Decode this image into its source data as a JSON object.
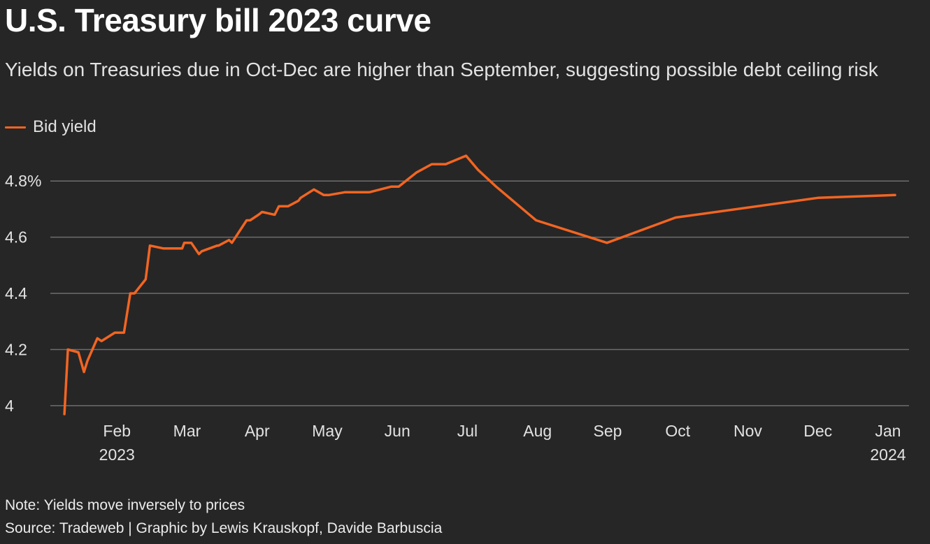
{
  "header": {
    "title": "U.S. Treasury bill 2023 curve",
    "subtitle": "Yields on Treasuries due in Oct-Dec are higher than September, suggesting possible debt ceiling risk"
  },
  "legend": {
    "label": "Bid yield"
  },
  "footer": {
    "note": "Note: Yields move inversely to prices",
    "source": "Source: Tradeweb | Graphic by Lewis Krauskopf, Davide Barbuscia"
  },
  "colors": {
    "background": "#262626",
    "line": "#f26522",
    "grid": "#6e6e6e"
  },
  "chart_data": {
    "type": "line",
    "title": "U.S. Treasury bill 2023 curve",
    "xlabel": "",
    "ylabel": "",
    "ylim": [
      3.97,
      4.9
    ],
    "xlim": [
      0,
      12.2
    ],
    "grid": true,
    "legend_position": "top-left",
    "y_ticks": [
      {
        "value": 4.0,
        "label": "4"
      },
      {
        "value": 4.2,
        "label": "4.2"
      },
      {
        "value": 4.4,
        "label": "4.4"
      },
      {
        "value": 4.6,
        "label": "4.6"
      },
      {
        "value": 4.8,
        "label": "4.8%"
      }
    ],
    "x_ticks": [
      {
        "value": 1,
        "label": "Feb",
        "sublabel": "2023"
      },
      {
        "value": 2,
        "label": "Mar"
      },
      {
        "value": 3,
        "label": "Apr"
      },
      {
        "value": 4,
        "label": "May"
      },
      {
        "value": 5,
        "label": "Jun"
      },
      {
        "value": 6,
        "label": "Jul"
      },
      {
        "value": 7,
        "label": "Aug"
      },
      {
        "value": 8,
        "label": "Sep"
      },
      {
        "value": 9,
        "label": "Oct"
      },
      {
        "value": 10,
        "label": "Nov"
      },
      {
        "value": 11,
        "label": "Dec"
      },
      {
        "value": 12,
        "label": "Jan",
        "sublabel": "2024"
      }
    ],
    "series": [
      {
        "name": "Bid yield",
        "x": [
          0.25,
          0.3,
          0.45,
          0.53,
          0.58,
          0.72,
          0.78,
          0.97,
          1.1,
          1.19,
          1.25,
          1.41,
          1.47,
          1.66,
          1.72,
          1.93,
          1.96,
          2.06,
          2.17,
          2.21,
          2.43,
          2.45,
          2.6,
          2.64,
          2.85,
          2.9,
          3.02,
          3.07,
          3.25,
          3.31,
          3.44,
          3.59,
          3.62,
          3.81,
          3.95,
          4.02,
          4.25,
          4.29,
          4.6,
          4.91,
          5.02,
          5.27,
          5.49,
          5.69,
          5.98,
          6.15,
          6.41,
          6.98,
          7.99,
          8.97,
          11.0,
          12.1
        ],
        "y": [
          3.97,
          4.2,
          4.19,
          4.12,
          4.16,
          4.24,
          4.23,
          4.26,
          4.26,
          4.4,
          4.4,
          4.45,
          4.57,
          4.56,
          4.56,
          4.56,
          4.58,
          4.58,
          4.54,
          4.55,
          4.57,
          4.57,
          4.59,
          4.58,
          4.66,
          4.66,
          4.68,
          4.69,
          4.68,
          4.71,
          4.71,
          4.73,
          4.74,
          4.77,
          4.75,
          4.75,
          4.76,
          4.76,
          4.76,
          4.78,
          4.78,
          4.83,
          4.86,
          4.86,
          4.89,
          4.84,
          4.78,
          4.66,
          4.58,
          4.67,
          4.74,
          4.75
        ]
      }
    ]
  }
}
